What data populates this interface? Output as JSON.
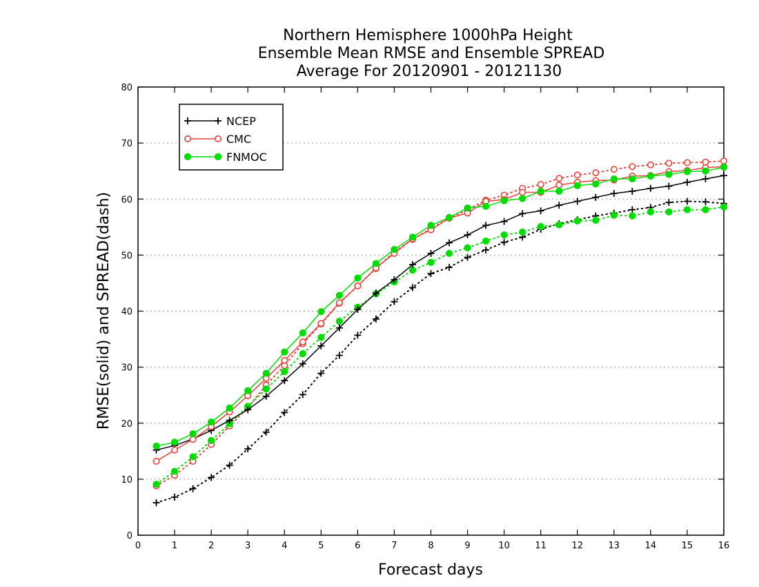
{
  "chart_data": {
    "type": "line",
    "title": [
      "Northern Hemisphere 1000hPa Height",
      "Ensemble Mean RMSE and Ensemble SPREAD",
      "Average For 20120901 - 20121130"
    ],
    "xlabel": "Forecast days",
    "ylabel": "RMSE(solid) and SPREAD(dash)",
    "xlim": [
      0,
      16
    ],
    "ylim": [
      0,
      80
    ],
    "xticks": [
      0,
      1,
      2,
      3,
      4,
      5,
      6,
      7,
      8,
      9,
      10,
      11,
      12,
      13,
      14,
      15,
      16
    ],
    "yticks": [
      0,
      10,
      20,
      30,
      40,
      50,
      60,
      70,
      80
    ],
    "grid": "horizontal-dotted",
    "legend_position": "top-left",
    "x": [
      0.5,
      1,
      1.5,
      2,
      2.5,
      3,
      3.5,
      4,
      4.5,
      5,
      5.5,
      6,
      6.5,
      7,
      7.5,
      8,
      8.5,
      9,
      9.5,
      10,
      10.5,
      11,
      11.5,
      12,
      12.5,
      13,
      13.5,
      14,
      14.5,
      15,
      15.5,
      16
    ],
    "series": [
      {
        "name": "NCEP",
        "kind": "rmse",
        "style": "solid",
        "marker": "plus",
        "color": "#000000",
        "values": [
          15.2,
          16.0,
          17.2,
          18.7,
          20.5,
          22.4,
          24.8,
          27.6,
          30.6,
          33.8,
          37.0,
          40.3,
          43.2,
          45.6,
          48.3,
          50.3,
          52.2,
          53.6,
          55.3,
          56.0,
          57.4,
          57.9,
          58.9,
          59.6,
          60.3,
          61.0,
          61.4,
          61.9,
          62.3,
          63.0,
          63.6,
          64.2
        ]
      },
      {
        "name": "",
        "kind": "spread",
        "style": "dotted",
        "marker": "plus",
        "color": "#000000",
        "values": [
          5.8,
          6.8,
          8.3,
          10.3,
          12.5,
          15.4,
          18.4,
          21.9,
          25.1,
          28.9,
          32.1,
          35.7,
          38.6,
          41.7,
          44.2,
          46.7,
          47.8,
          49.6,
          50.9,
          52.3,
          53.2,
          54.6,
          55.6,
          56.3,
          57.0,
          57.5,
          58.1,
          58.5,
          59.4,
          59.6,
          59.5,
          59.2
        ]
      },
      {
        "name": "CMC",
        "kind": "rmse",
        "style": "solid",
        "marker": "open-circle",
        "color": "#e8413c",
        "values": [
          13.2,
          15.2,
          17.1,
          19.4,
          22.0,
          24.9,
          28.0,
          31.2,
          34.5,
          37.8,
          41.5,
          44.5,
          47.7,
          50.3,
          52.9,
          54.5,
          56.6,
          57.5,
          59.6,
          59.9,
          61.2,
          61.2,
          62.5,
          63.0,
          63.3,
          63.4,
          64.1,
          64.2,
          64.9,
          65.1,
          65.6,
          65.8
        ]
      },
      {
        "name": "",
        "kind": "spread",
        "style": "dotted",
        "marker": "open-circle",
        "color": "#e8413c",
        "values": [
          8.8,
          10.7,
          13.2,
          16.2,
          19.5,
          22.8,
          26.8,
          30.3,
          34.2,
          37.7,
          41.4,
          44.5,
          47.6,
          50.6,
          52.8,
          54.7,
          56.6,
          58.1,
          59.8,
          60.7,
          61.9,
          62.6,
          63.7,
          64.3,
          64.7,
          65.3,
          65.8,
          66.1,
          66.4,
          66.5,
          66.6,
          66.8
        ]
      },
      {
        "name": "FNMOC",
        "kind": "rmse",
        "style": "solid",
        "marker": "filled-circle",
        "color": "#00dd00",
        "values": [
          15.9,
          16.6,
          18.1,
          20.2,
          22.7,
          25.8,
          28.9,
          32.7,
          36.1,
          39.9,
          42.8,
          45.9,
          48.5,
          51.0,
          53.2,
          55.3,
          56.7,
          58.4,
          58.7,
          59.7,
          60.1,
          61.4,
          61.4,
          62.4,
          62.7,
          63.6,
          63.6,
          64.1,
          64.4,
          64.9,
          65.0,
          65.7
        ]
      },
      {
        "name": "",
        "kind": "spread",
        "style": "dotted",
        "marker": "filled-circle",
        "color": "#00dd00",
        "values": [
          9.1,
          11.4,
          14.0,
          16.9,
          19.9,
          23.0,
          26.1,
          29.2,
          32.4,
          35.3,
          38.2,
          40.7,
          43.1,
          45.2,
          47.3,
          48.7,
          50.3,
          51.3,
          52.5,
          53.6,
          54.1,
          55.1,
          55.4,
          56.1,
          56.2,
          57.1,
          57.0,
          57.7,
          57.7,
          58.1,
          58.1,
          58.6
        ]
      }
    ]
  }
}
